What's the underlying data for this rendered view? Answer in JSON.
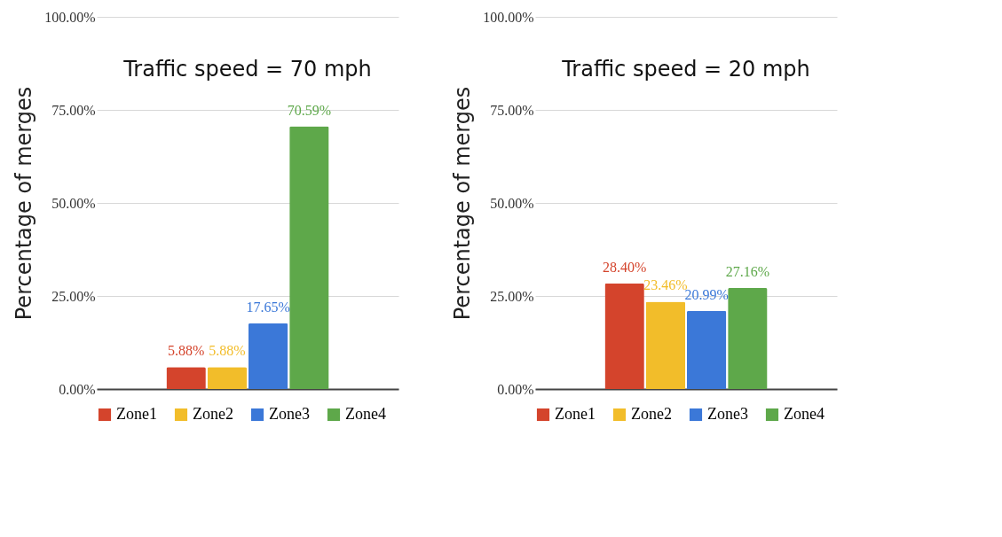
{
  "chart_data": [
    {
      "type": "bar",
      "title": "Traffic speed = 70 mph",
      "ylabel": "Percentage of merges",
      "categories": [
        null
      ],
      "ylim": [
        0,
        100
      ],
      "yticks": [
        {
          "value": 0,
          "label": "0.00%"
        },
        {
          "value": 25,
          "label": "25.00%"
        },
        {
          "value": 50,
          "label": "50.00%"
        },
        {
          "value": 75,
          "label": "75.00%"
        },
        {
          "value": 100,
          "label": "100.00%"
        }
      ],
      "grid": "y",
      "legend": "bottom",
      "series": [
        {
          "name": "Zone1",
          "color": "#d4442c",
          "values": [
            5.88
          ],
          "value_labels": [
            "5.88%"
          ]
        },
        {
          "name": "Zone2",
          "color": "#f2bd2a",
          "values": [
            5.88
          ],
          "value_labels": [
            "5.88%"
          ]
        },
        {
          "name": "Zone3",
          "color": "#3b78d8",
          "values": [
            17.65
          ],
          "value_labels": [
            "17.65%"
          ]
        },
        {
          "name": "Zone4",
          "color": "#5ea84a",
          "values": [
            70.59
          ],
          "value_labels": [
            "70.59%"
          ]
        }
      ]
    },
    {
      "type": "bar",
      "title": "Traffic speed = 20 mph",
      "ylabel": "Percentage of merges",
      "categories": [
        null
      ],
      "ylim": [
        0,
        100
      ],
      "yticks": [
        {
          "value": 0,
          "label": "0.00%"
        },
        {
          "value": 25,
          "label": "25.00%"
        },
        {
          "value": 50,
          "label": "50.00%"
        },
        {
          "value": 75,
          "label": "75.00%"
        },
        {
          "value": 100,
          "label": "100.00%"
        }
      ],
      "grid": "y",
      "legend": "bottom",
      "series": [
        {
          "name": "Zone1",
          "color": "#d4442c",
          "values": [
            28.4
          ],
          "value_labels": [
            "28.40%"
          ]
        },
        {
          "name": "Zone2",
          "color": "#f2bd2a",
          "values": [
            23.46
          ],
          "value_labels": [
            "23.46%"
          ]
        },
        {
          "name": "Zone3",
          "color": "#3b78d8",
          "values": [
            20.99
          ],
          "value_labels": [
            "20.99%"
          ]
        },
        {
          "name": "Zone4",
          "color": "#5ea84a",
          "values": [
            27.16
          ],
          "value_labels": [
            "27.16%"
          ]
        }
      ]
    }
  ]
}
